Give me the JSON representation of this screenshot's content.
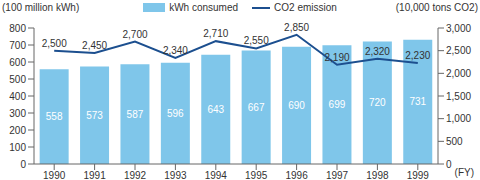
{
  "chart_data": {
    "type": "bar",
    "categories": [
      "1990",
      "1991",
      "1992",
      "1993",
      "1994",
      "1995",
      "1996",
      "1997",
      "1998",
      "1999"
    ],
    "x_label": "(FY)",
    "y_label": "(100 million kWh)",
    "y2_label": "(10,000 tons CO2)",
    "ylim": [
      0,
      800
    ],
    "yticks": [
      0,
      100,
      200,
      300,
      400,
      500,
      600,
      700,
      800
    ],
    "y2lim": [
      0,
      3000
    ],
    "y2ticks": [
      0,
      500,
      {
        "value": 1000,
        "label": "1,000"
      },
      {
        "value": 1500,
        "label": "1,500"
      },
      {
        "value": 2000,
        "label": "2,000"
      },
      {
        "value": 2500,
        "label": "2,500"
      },
      {
        "value": 3000,
        "label": "3,000"
      }
    ],
    "legend": "top",
    "series": [
      {
        "name": "kWh consumed",
        "type": "bar",
        "color": "#7fc6ea",
        "values": [
          558,
          573,
          587,
          596,
          643,
          667,
          690,
          699,
          720,
          731
        ],
        "data_labels": true
      },
      {
        "name": "CO2 emission",
        "type": "line",
        "axis": "y2",
        "color": "#1c4f8f",
        "values": [
          2500,
          2450,
          2700,
          2340,
          2710,
          2550,
          2850,
          2190,
          2320,
          2230
        ],
        "value_labels": [
          "2,500",
          "2,450",
          "2,700",
          "2,340",
          "2,710",
          "2,550",
          "2,850",
          "2,190",
          "2,320",
          "2,230"
        ],
        "data_labels": true
      }
    ]
  }
}
